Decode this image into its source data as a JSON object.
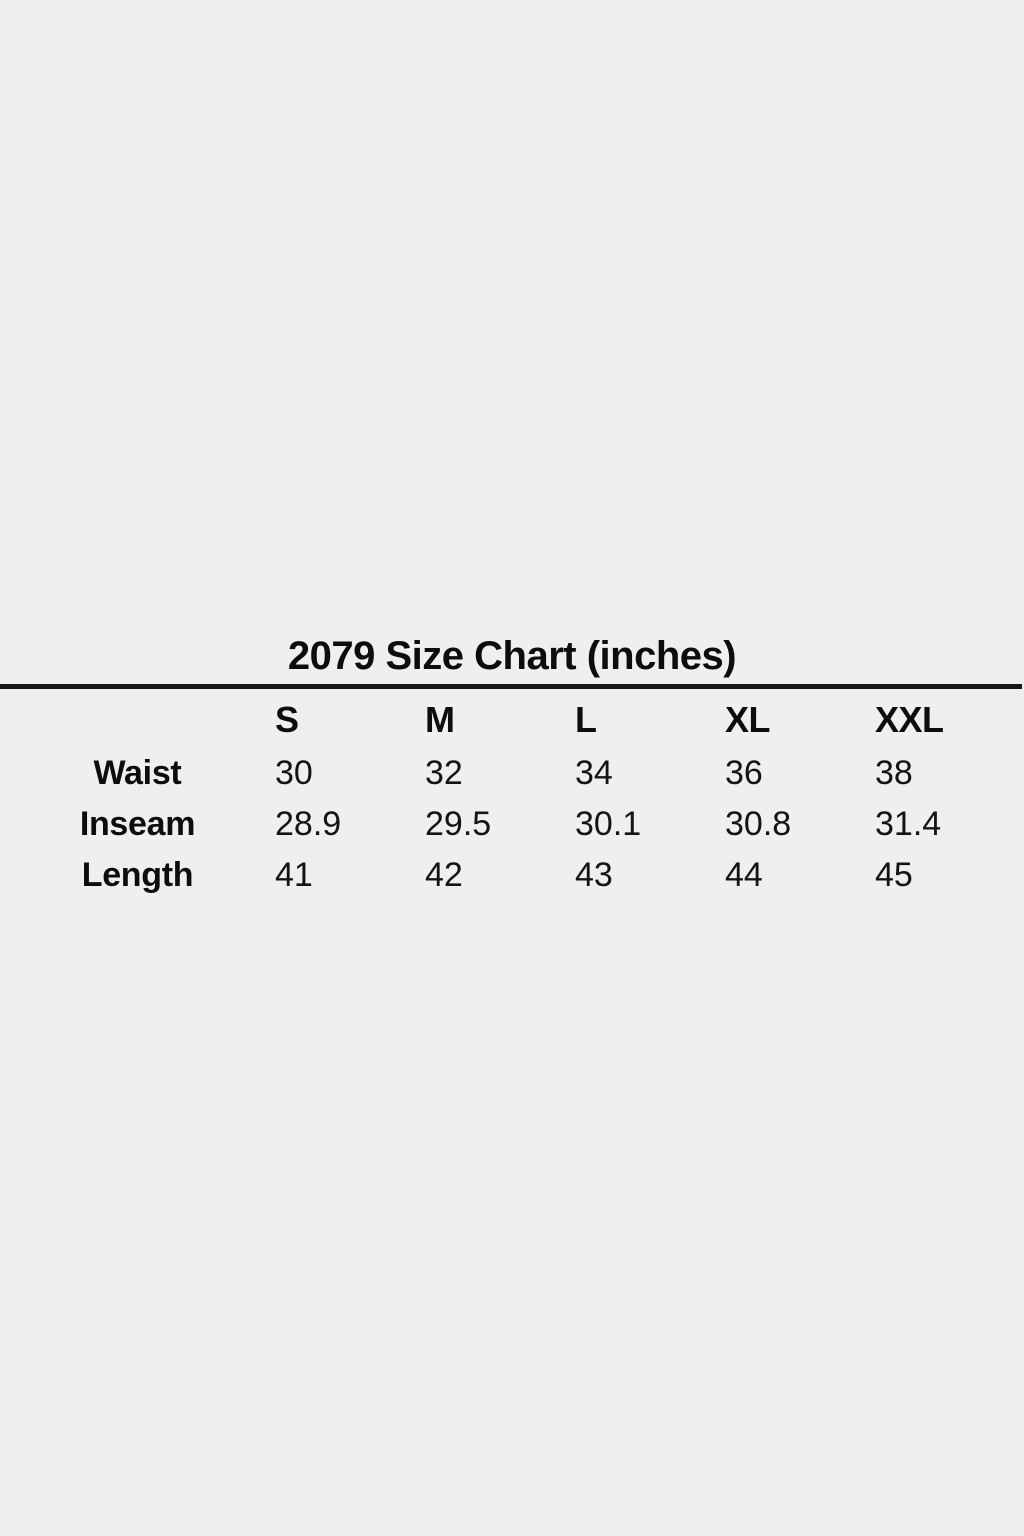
{
  "page": {
    "background_color": "#efefef",
    "text_color": "#101010",
    "divider_color": "#181818"
  },
  "chart_data": {
    "type": "table",
    "title": "2079 Size Chart (inches)",
    "columns": [
      "S",
      "M",
      "L",
      "XL",
      "XXL"
    ],
    "rows": [
      {
        "label": "Waist",
        "values": [
          "30",
          "32",
          "34",
          "36",
          "38"
        ]
      },
      {
        "label": "Inseam",
        "values": [
          "28.9",
          "29.5",
          "30.1",
          "30.8",
          "31.4"
        ]
      },
      {
        "label": "Length",
        "values": [
          "41",
          "42",
          "43",
          "44",
          "45"
        ]
      }
    ]
  }
}
